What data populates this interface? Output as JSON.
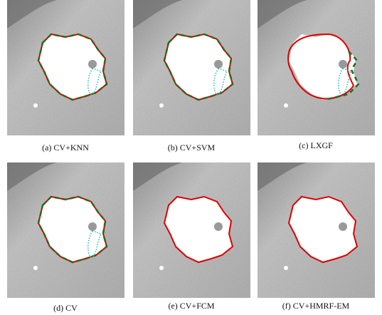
{
  "captions": [
    "(a) CV+KNN",
    "(b) CV+SVM",
    "(c) LXGF",
    "(d) CV",
    "(e) CV+FCM",
    "(f) CV+HMRF-EM"
  ]
}
